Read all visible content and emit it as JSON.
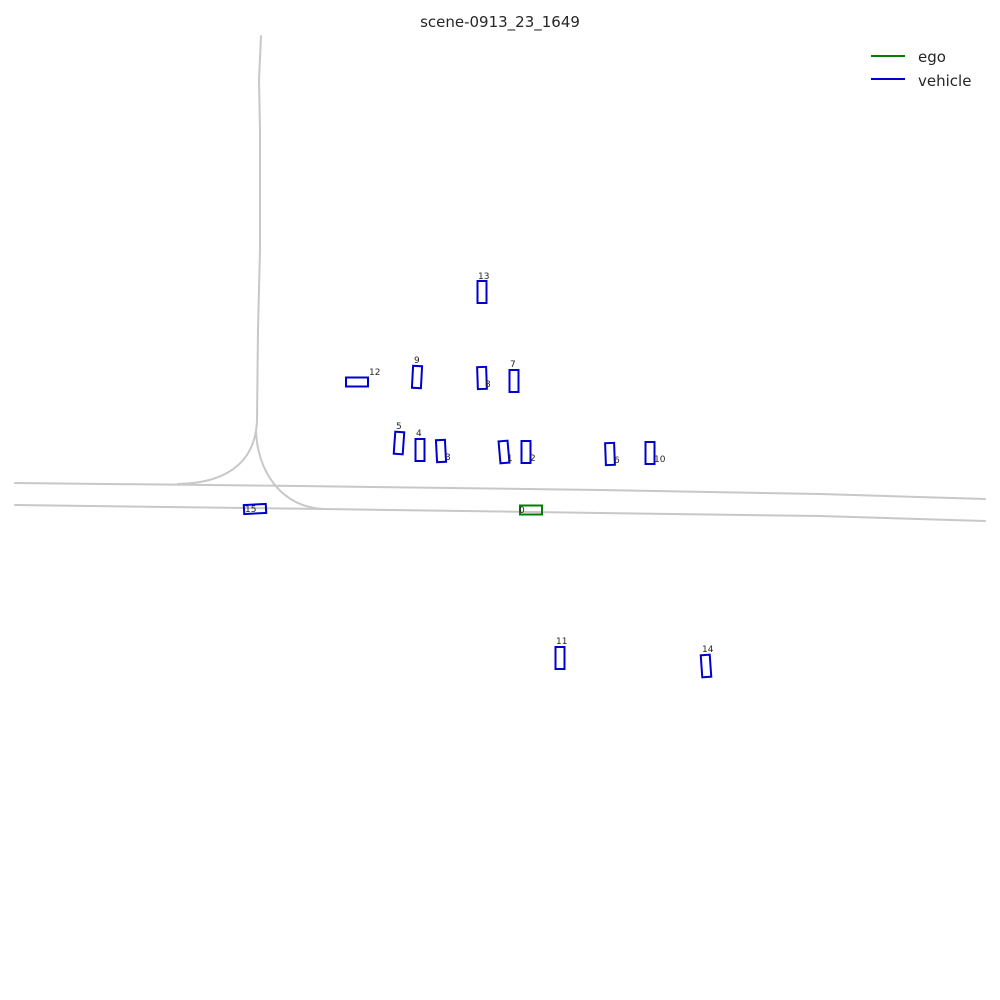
{
  "title": "scene-0913_23_1649",
  "legend": [
    {
      "label": "ego",
      "color": "#008000"
    },
    {
      "label": "vehicle",
      "color": "#0000cc"
    }
  ],
  "agents": [
    {
      "id": "0",
      "type": "ego"
    },
    {
      "id": "1",
      "type": "vehicle"
    },
    {
      "id": "2",
      "type": "vehicle"
    },
    {
      "id": "3",
      "type": "vehicle"
    },
    {
      "id": "4",
      "type": "vehicle"
    },
    {
      "id": "5",
      "type": "vehicle"
    },
    {
      "id": "6",
      "type": "vehicle"
    },
    {
      "id": "7",
      "type": "vehicle"
    },
    {
      "id": "8",
      "type": "vehicle"
    },
    {
      "id": "9",
      "type": "vehicle"
    },
    {
      "id": "10",
      "type": "vehicle"
    },
    {
      "id": "11",
      "type": "vehicle"
    },
    {
      "id": "12",
      "type": "vehicle"
    },
    {
      "id": "13",
      "type": "vehicle"
    },
    {
      "id": "14",
      "type": "vehicle"
    },
    {
      "id": "15",
      "type": "vehicle"
    }
  ]
}
